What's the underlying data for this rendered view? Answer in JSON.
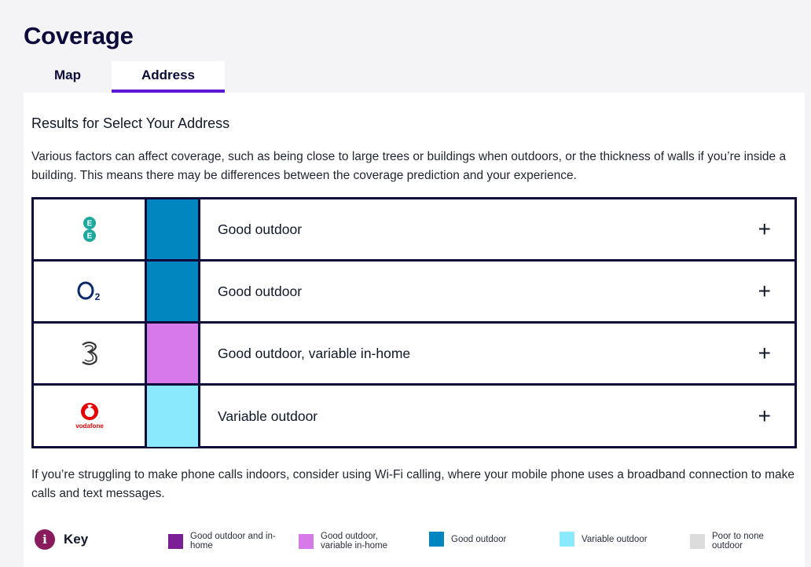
{
  "page": {
    "title": "Coverage"
  },
  "tabs": [
    {
      "label": "Map",
      "active": false
    },
    {
      "label": "Address",
      "active": true
    }
  ],
  "results": {
    "title": "Results for Select Your Address",
    "intro": "Various factors can affect coverage, such as being close to large trees or buildings when outdoors, or the thickness of walls if you’re inside a building. This means there may be differences between the coverage prediction and your experience."
  },
  "networks": [
    {
      "name": "EE",
      "logo_text": "EE",
      "status": "Good outdoor",
      "color": "#0286c0",
      "expand": "+"
    },
    {
      "name": "O2",
      "logo_text": "O2",
      "status": "Good outdoor",
      "color": "#0286c0",
      "expand": "+"
    },
    {
      "name": "Three",
      "logo_text": "3",
      "status": "Good outdoor, variable in-home",
      "color": "#d57ae8",
      "expand": "+"
    },
    {
      "name": "Vodafone",
      "logo_text": "vodafone",
      "status": "Variable outdoor",
      "color": "#8ae9fc",
      "expand": "+"
    }
  ],
  "footnote": "If you’re struggling to make phone calls indoors, consider using Wi-Fi calling, where your mobile phone uses a broadband connection to make calls and text messages.",
  "key": {
    "icon": "info-icon",
    "title": "Key",
    "items": [
      {
        "label": "Good outdoor and in-home",
        "color": "#7c1f96"
      },
      {
        "label": "Good outdoor, variable in-home",
        "color": "#d57ae8"
      },
      {
        "label": "Good outdoor",
        "color": "#0286c0"
      },
      {
        "label": "Variable outdoor",
        "color": "#8ae9fc"
      },
      {
        "label": "Poor to none outdoor",
        "color": "#dcdcdc"
      }
    ]
  }
}
